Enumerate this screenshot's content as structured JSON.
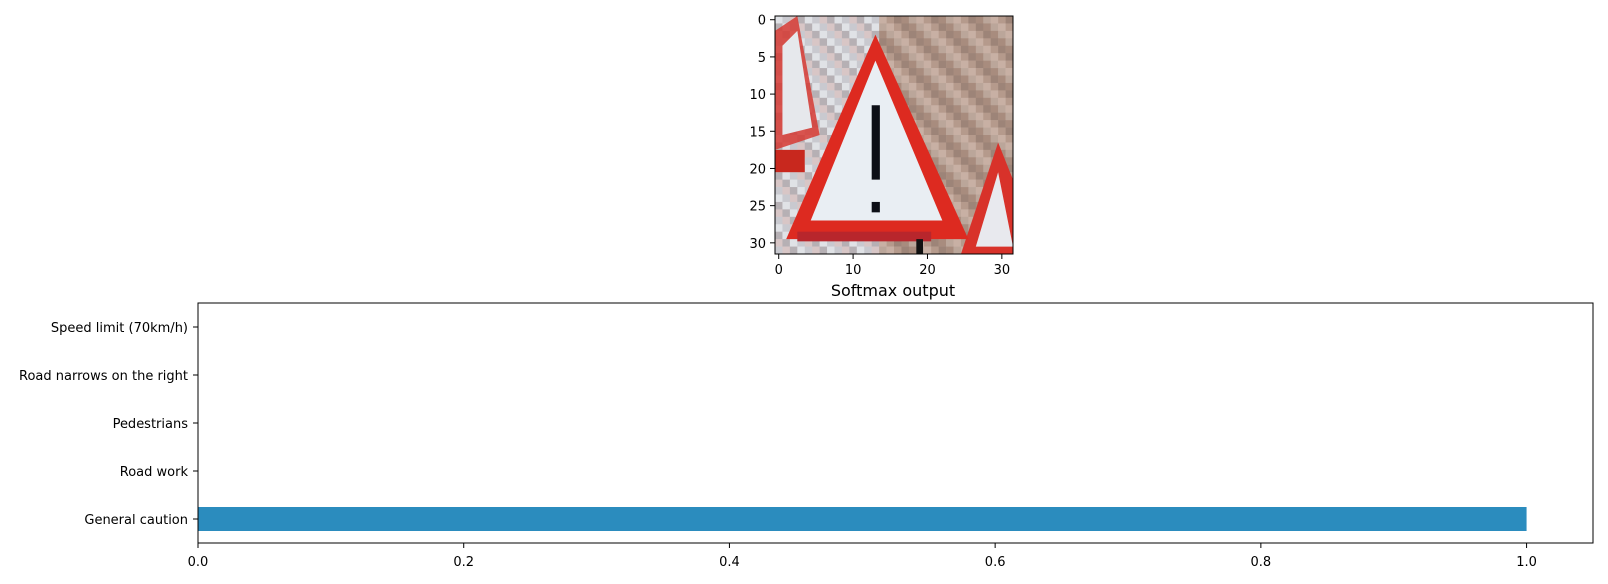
{
  "image_panel": {
    "xticks": [
      0,
      10,
      20,
      30
    ],
    "yticks": [
      0,
      5,
      10,
      15,
      20,
      25,
      30
    ],
    "xlim": [
      -0.5,
      31.5
    ],
    "ylim": [
      31.5,
      -0.5
    ],
    "image_description": "32x32 pixel image of a triangular red-bordered warning sign with an exclamation mark"
  },
  "chart_data": {
    "type": "bar",
    "orientation": "horizontal",
    "title": "Softmax output",
    "categories": [
      "General caution",
      "Road work",
      "Pedestrians",
      "Road narrows on the right",
      "Speed limit (70km/h)"
    ],
    "values": [
      1.0,
      0.0,
      0.0,
      0.0,
      0.0
    ],
    "xlabel": "",
    "ylabel": "",
    "xlim": [
      0.0,
      1.05
    ],
    "xticks": [
      "0.0",
      "0.2",
      "0.4",
      "0.6",
      "0.8",
      "1.0"
    ],
    "grid": false,
    "bar_color": "#2b8cbe"
  }
}
